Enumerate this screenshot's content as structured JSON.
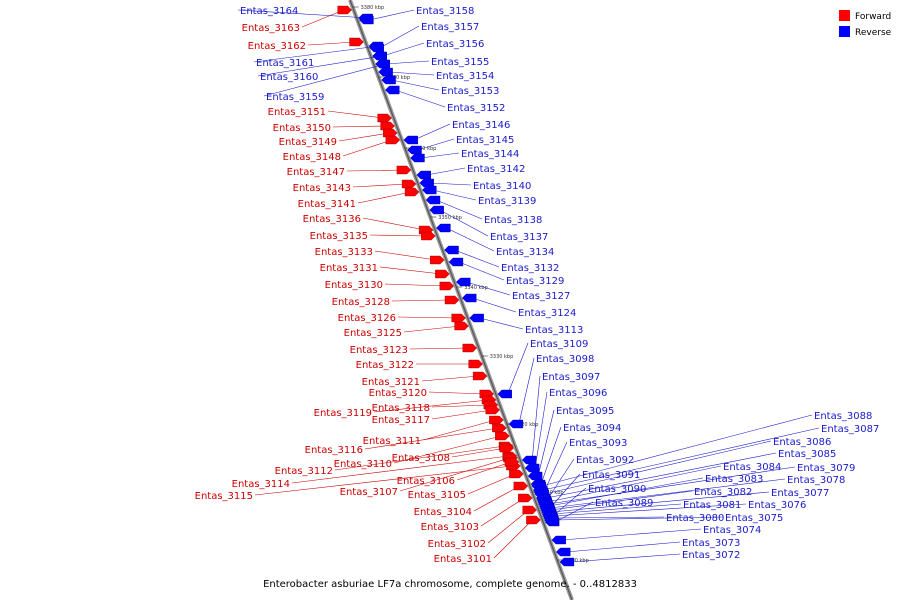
{
  "legend": [
    {
      "label": "Forward",
      "color": "#ff0000"
    },
    {
      "label": "Reverse",
      "color": "#0000ff"
    }
  ],
  "caption": "Enterobacter asburiae LF7a chromosome, complete genome. - 0..4812833",
  "axis_ticks": [
    "3380 kbp",
    "3370 kbp",
    "3360 kbp",
    "3350 kbp",
    "3340 kbp",
    "3330 kbp",
    "3320 kbp",
    "3310 kbp",
    "3300 kbp"
  ],
  "forward_genes": [
    "Entas_3163",
    "Entas_3162",
    "Entas_3151",
    "Entas_3150",
    "Entas_3149",
    "Entas_3148",
    "Entas_3147",
    "Entas_3143",
    "Entas_3141",
    "Entas_3136",
    "Entas_3135",
    "Entas_3133",
    "Entas_3131",
    "Entas_3130",
    "Entas_3128",
    "Entas_3126",
    "Entas_3125",
    "Entas_3123",
    "Entas_3122",
    "Entas_3121",
    "Entas_3120",
    "Entas_3119",
    "Entas_3118",
    "Entas_3117",
    "Entas_3111",
    "Entas_3116",
    "Entas_3110",
    "Entas_3112",
    "Entas_3114",
    "Entas_3115",
    "Entas_3108",
    "Entas_3107",
    "Entas_3106",
    "Entas_3105",
    "Entas_3104",
    "Entas_3103",
    "Entas_3102",
    "Entas_3101"
  ],
  "reverse_genes": [
    "Entas_3164",
    "Entas_3161",
    "Entas_3160",
    "Entas_3159",
    "Entas_3158",
    "Entas_3157",
    "Entas_3156",
    "Entas_3155",
    "Entas_3154",
    "Entas_3153",
    "Entas_3152",
    "Entas_3146",
    "Entas_3145",
    "Entas_3144",
    "Entas_3142",
    "Entas_3140",
    "Entas_3139",
    "Entas_3138",
    "Entas_3137",
    "Entas_3134",
    "Entas_3132",
    "Entas_3129",
    "Entas_3127",
    "Entas_3124",
    "Entas_3113",
    "Entas_3109",
    "Entas_3098",
    "Entas_3097",
    "Entas_3096",
    "Entas_3095",
    "Entas_3094",
    "Entas_3093",
    "Entas_3092",
    "Entas_3091",
    "Entas_3090",
    "Entas_3089",
    "Entas_3088",
    "Entas_3087",
    "Entas_3086",
    "Entas_3085",
    "Entas_3084",
    "Entas_3083",
    "Entas_3082",
    "Entas_3081",
    "Entas_3080",
    "Entas_3079",
    "Entas_3078",
    "Entas_3077",
    "Entas_3076",
    "Entas_3075",
    "Entas_3074",
    "Entas_3073",
    "Entas_3072"
  ]
}
